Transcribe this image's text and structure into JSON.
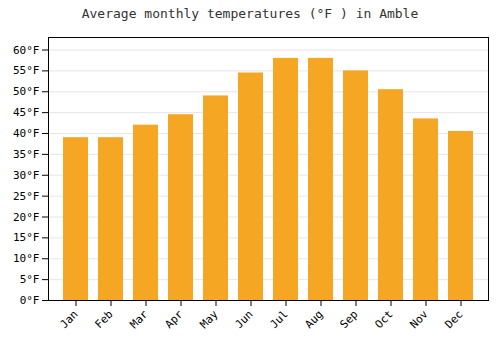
{
  "chart_data": {
    "type": "bar",
    "title": "Average monthly temperatures (°F ) in Amble",
    "categories": [
      "Jan",
      "Feb",
      "Mar",
      "Apr",
      "May",
      "Jun",
      "Jul",
      "Aug",
      "Sep",
      "Oct",
      "Nov",
      "Dec"
    ],
    "values": [
      39,
      39,
      42,
      44.5,
      49,
      54.5,
      58,
      58,
      55,
      50.5,
      43.5,
      40.5
    ],
    "color": "#F5A623",
    "ylim": [
      0,
      63
    ],
    "yticks": [
      {
        "value": 0,
        "label": "0°F"
      },
      {
        "value": 5,
        "label": "5°F"
      },
      {
        "value": 10,
        "label": "10°F"
      },
      {
        "value": 15,
        "label": "15°F"
      },
      {
        "value": 20,
        "label": "20°F"
      },
      {
        "value": 25,
        "label": "25°F"
      },
      {
        "value": 30,
        "label": "30°F"
      },
      {
        "value": 35,
        "label": "35°F"
      },
      {
        "value": 40,
        "label": "40°F"
      },
      {
        "value": 45,
        "label": "45°F"
      },
      {
        "value": 50,
        "label": "50°F"
      },
      {
        "value": 55,
        "label": "55°F"
      },
      {
        "value": 60,
        "label": "60°F"
      }
    ],
    "grid": true
  }
}
